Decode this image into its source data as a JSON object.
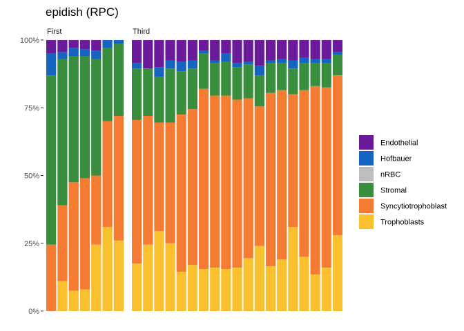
{
  "chart_data": {
    "type": "bar",
    "stacked": true,
    "title": "epidish (RPC)",
    "xlabel": "",
    "ylabel": "",
    "ylim": [
      0,
      1
    ],
    "y_ticks": [
      0,
      0.25,
      0.5,
      0.75,
      1.0
    ],
    "y_tick_labels": [
      "0%",
      "25%",
      "50%",
      "75%",
      "100%"
    ],
    "legend_position": "right",
    "series": [
      {
        "name": "Endothelial",
        "color": "#6a1b9a"
      },
      {
        "name": "Hofbauer",
        "color": "#1565c0"
      },
      {
        "name": "nRBC",
        "color": "#bdbdbd"
      },
      {
        "name": "Stromal",
        "color": "#388e3c"
      },
      {
        "name": "Syncytiotrophoblast",
        "color": "#f57c32"
      },
      {
        "name": "Trophoblasts",
        "color": "#fbc02d"
      }
    ],
    "panels": [
      {
        "label": "First",
        "bars": [
          {
            "Trophoblasts": 0.0,
            "Syncytiotrophoblast": 0.245,
            "Stromal": 0.625,
            "nRBC": 0.0,
            "Hofbauer": 0.08,
            "Endothelial": 0.05
          },
          {
            "Trophoblasts": 0.11,
            "Syncytiotrophoblast": 0.28,
            "Stromal": 0.54,
            "nRBC": 0.0,
            "Hofbauer": 0.025,
            "Endothelial": 0.045
          },
          {
            "Trophoblasts": 0.075,
            "Syncytiotrophoblast": 0.4,
            "Stromal": 0.465,
            "nRBC": 0.0,
            "Hofbauer": 0.03,
            "Endothelial": 0.03
          },
          {
            "Trophoblasts": 0.08,
            "Syncytiotrophoblast": 0.41,
            "Stromal": 0.45,
            "nRBC": 0.0,
            "Hofbauer": 0.025,
            "Endothelial": 0.035
          },
          {
            "Trophoblasts": 0.245,
            "Syncytiotrophoblast": 0.255,
            "Stromal": 0.43,
            "nRBC": 0.0,
            "Hofbauer": 0.03,
            "Endothelial": 0.04
          },
          {
            "Trophoblasts": 0.31,
            "Syncytiotrophoblast": 0.39,
            "Stromal": 0.27,
            "nRBC": 0.0,
            "Hofbauer": 0.03,
            "Endothelial": 0.0
          },
          {
            "Trophoblasts": 0.26,
            "Syncytiotrophoblast": 0.46,
            "Stromal": 0.265,
            "nRBC": 0.0,
            "Hofbauer": 0.015,
            "Endothelial": 0.0
          }
        ]
      },
      {
        "label": "Third",
        "bars": [
          {
            "Trophoblasts": 0.175,
            "Syncytiotrophoblast": 0.53,
            "Stromal": 0.19,
            "nRBC": 0.0,
            "Hofbauer": 0.02,
            "Endothelial": 0.085
          },
          {
            "Trophoblasts": 0.245,
            "Syncytiotrophoblast": 0.475,
            "Stromal": 0.175,
            "nRBC": 0.0,
            "Hofbauer": 0.0,
            "Endothelial": 0.105
          },
          {
            "Trophoblasts": 0.295,
            "Syncytiotrophoblast": 0.4,
            "Stromal": 0.17,
            "nRBC": 0.0,
            "Hofbauer": 0.035,
            "Endothelial": 0.1
          },
          {
            "Trophoblasts": 0.25,
            "Syncytiotrophoblast": 0.445,
            "Stromal": 0.2,
            "nRBC": 0.0,
            "Hofbauer": 0.03,
            "Endothelial": 0.075
          },
          {
            "Trophoblasts": 0.145,
            "Syncytiotrophoblast": 0.58,
            "Stromal": 0.16,
            "nRBC": 0.0,
            "Hofbauer": 0.035,
            "Endothelial": 0.08
          },
          {
            "Trophoblasts": 0.17,
            "Syncytiotrophoblast": 0.575,
            "Stromal": 0.15,
            "nRBC": 0.0,
            "Hofbauer": 0.03,
            "Endothelial": 0.075
          },
          {
            "Trophoblasts": 0.155,
            "Syncytiotrophoblast": 0.665,
            "Stromal": 0.13,
            "nRBC": 0.0,
            "Hofbauer": 0.01,
            "Endothelial": 0.04
          },
          {
            "Trophoblasts": 0.16,
            "Syncytiotrophoblast": 0.635,
            "Stromal": 0.12,
            "nRBC": 0.0,
            "Hofbauer": 0.01,
            "Endothelial": 0.075
          },
          {
            "Trophoblasts": 0.155,
            "Syncytiotrophoblast": 0.64,
            "Stromal": 0.125,
            "nRBC": 0.0,
            "Hofbauer": 0.03,
            "Endothelial": 0.05
          },
          {
            "Trophoblasts": 0.16,
            "Syncytiotrophoblast": 0.62,
            "Stromal": 0.12,
            "nRBC": 0.0,
            "Hofbauer": 0.015,
            "Endothelial": 0.085
          },
          {
            "Trophoblasts": 0.195,
            "Syncytiotrophoblast": 0.59,
            "Stromal": 0.125,
            "nRBC": 0.0,
            "Hofbauer": 0.01,
            "Endothelial": 0.08
          },
          {
            "Trophoblasts": 0.24,
            "Syncytiotrophoblast": 0.515,
            "Stromal": 0.115,
            "nRBC": 0.0,
            "Hofbauer": 0.035,
            "Endothelial": 0.095
          },
          {
            "Trophoblasts": 0.165,
            "Syncytiotrophoblast": 0.64,
            "Stromal": 0.11,
            "nRBC": 0.0,
            "Hofbauer": 0.01,
            "Endothelial": 0.075
          },
          {
            "Trophoblasts": 0.19,
            "Syncytiotrophoblast": 0.625,
            "Stromal": 0.1,
            "nRBC": 0.0,
            "Hofbauer": 0.015,
            "Endothelial": 0.07
          },
          {
            "Trophoblasts": 0.31,
            "Syncytiotrophoblast": 0.49,
            "Stromal": 0.095,
            "nRBC": 0.0,
            "Hofbauer": 0.03,
            "Endothelial": 0.075
          },
          {
            "Trophoblasts": 0.2,
            "Syncytiotrophoblast": 0.615,
            "Stromal": 0.1,
            "nRBC": 0.0,
            "Hofbauer": 0.02,
            "Endothelial": 0.065
          },
          {
            "Trophoblasts": 0.135,
            "Syncytiotrophoblast": 0.695,
            "Stromal": 0.085,
            "nRBC": 0.0,
            "Hofbauer": 0.015,
            "Endothelial": 0.07
          },
          {
            "Trophoblasts": 0.16,
            "Syncytiotrophoblast": 0.665,
            "Stromal": 0.09,
            "nRBC": 0.0,
            "Hofbauer": 0.015,
            "Endothelial": 0.07
          },
          {
            "Trophoblasts": 0.28,
            "Syncytiotrophoblast": 0.59,
            "Stromal": 0.075,
            "nRBC": 0.0,
            "Hofbauer": 0.01,
            "Endothelial": 0.045
          }
        ]
      }
    ]
  }
}
